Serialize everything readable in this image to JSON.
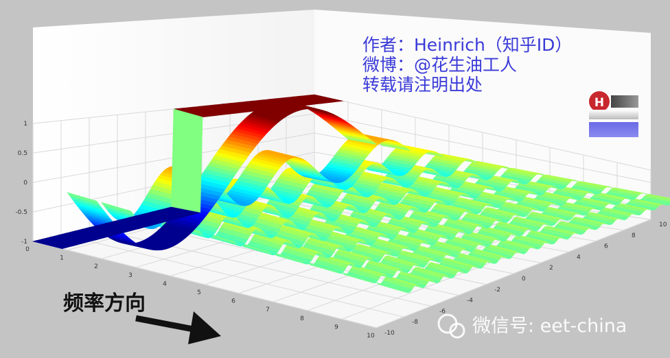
{
  "chart_data": {
    "type": "surface",
    "title": "",
    "xlabel": "",
    "ylabel": "",
    "zlabel": "",
    "z_ticks": [
      "1",
      "0.5",
      "0",
      "-0.5",
      "-1"
    ],
    "x_ticks": [
      "0",
      "1",
      "2",
      "3",
      "4",
      "5",
      "6",
      "7",
      "8",
      "9",
      "10"
    ],
    "y_ticks": [
      "-10",
      "-8",
      "-6",
      "-4",
      "-2",
      "0",
      "2",
      "4",
      "6",
      "8",
      "10"
    ],
    "zlim": [
      -1,
      1
    ],
    "xlim": [
      0,
      10
    ],
    "ylim": [
      -10,
      10
    ],
    "colormap": [
      "#00008f",
      "#0000ff",
      "#00ffff",
      "#ffff00",
      "#ff0000",
      "#800000"
    ],
    "grid": true,
    "description_of_series": "square wave built from its Fourier components; each row along the frequency axis is one harmonic"
  },
  "annotations": {
    "author_line": "作者：Heinrich（知乎ID）",
    "weibo_line": "微博：@花生油工人",
    "repost_line": "转载请注明出处",
    "annotation_color": "#3a3ad8",
    "logo_letter": "H"
  },
  "direction_label": "频率方向",
  "watermark": "微信号: eet-china"
}
